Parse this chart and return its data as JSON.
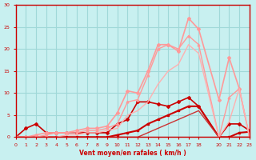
{
  "xlabel": "Vent moyen/en rafales ( km/h )",
  "bg_color": "#c8f0f0",
  "grid_color": "#a0d8d8",
  "axis_color": "#cc0000",
  "text_color": "#cc0000",
  "xlim": [
    0,
    23
  ],
  "ylim": [
    0,
    30
  ],
  "yticks": [
    0,
    5,
    10,
    15,
    20,
    25,
    30
  ],
  "xticks": [
    0,
    1,
    2,
    3,
    4,
    5,
    6,
    7,
    8,
    9,
    10,
    11,
    12,
    13,
    14,
    15,
    16,
    17,
    18,
    20,
    21,
    22,
    23
  ],
  "series": [
    {
      "x": [
        0,
        1,
        2,
        3,
        4,
        5,
        6,
        7,
        8,
        9,
        10,
        11,
        12,
        13,
        14,
        15,
        16,
        17,
        18,
        20,
        21,
        22,
        23
      ],
      "y": [
        0,
        2,
        3,
        1,
        1,
        1,
        1,
        1,
        1,
        1,
        3,
        4,
        8,
        8,
        7.5,
        7,
        8,
        9,
        7,
        0,
        3,
        3,
        1.5
      ],
      "color": "#cc0000",
      "lw": 1.2,
      "marker": "D",
      "ms": 2
    },
    {
      "x": [
        0,
        1,
        2,
        3,
        4,
        5,
        6,
        7,
        8,
        9,
        10,
        11,
        12,
        13,
        14,
        15,
        16,
        17,
        18,
        20,
        21,
        22,
        23
      ],
      "y": [
        0,
        0,
        0,
        0,
        0,
        0,
        0,
        0,
        0,
        0,
        0.5,
        1,
        1.5,
        3,
        4,
        5,
        6,
        7,
        7,
        0,
        0,
        1,
        1.2
      ],
      "color": "#cc0000",
      "lw": 1.5,
      "marker": "s",
      "ms": 2
    },
    {
      "x": [
        0,
        1,
        2,
        3,
        4,
        5,
        6,
        7,
        8,
        9,
        10,
        11,
        12,
        13,
        14,
        15,
        16,
        17,
        18,
        20,
        21,
        22,
        23
      ],
      "y": [
        0,
        0,
        0,
        0,
        0,
        0,
        0,
        0,
        0,
        0,
        0,
        0,
        0,
        1,
        2,
        3,
        4,
        5,
        6,
        0,
        0,
        0,
        0
      ],
      "color": "#cc3333",
      "lw": 1.0,
      "marker": null,
      "ms": 0
    },
    {
      "x": [
        0,
        1,
        2,
        3,
        4,
        5,
        6,
        7,
        8,
        9,
        10,
        11,
        12,
        13,
        14,
        15,
        16,
        17,
        18,
        20,
        21,
        22,
        23
      ],
      "y": [
        0,
        0,
        0.5,
        1,
        1,
        1,
        1.5,
        2,
        2,
        2.5,
        5.5,
        10.5,
        10,
        15,
        21,
        21,
        19.5,
        27,
        24.5,
        8.5,
        18,
        11,
        0
      ],
      "color": "#ff9999",
      "lw": 1.2,
      "marker": "D",
      "ms": 2
    },
    {
      "x": [
        0,
        1,
        2,
        3,
        4,
        5,
        6,
        7,
        8,
        9,
        10,
        11,
        12,
        13,
        14,
        15,
        16,
        17,
        18,
        20,
        21,
        22,
        23
      ],
      "y": [
        0,
        0,
        0,
        0.5,
        1,
        1,
        1,
        1.5,
        1.5,
        2,
        3,
        8,
        8.5,
        14,
        20,
        21,
        20,
        23,
        21,
        0,
        9,
        11,
        0
      ],
      "color": "#ff9999",
      "lw": 1.0,
      "marker": "^",
      "ms": 2
    },
    {
      "x": [
        0,
        1,
        2,
        3,
        4,
        5,
        6,
        7,
        8,
        9,
        10,
        11,
        12,
        13,
        14,
        15,
        16,
        17,
        18,
        20,
        21,
        22,
        23
      ],
      "y": [
        0,
        0,
        0,
        0,
        0,
        0.5,
        0.5,
        1,
        1,
        1.5,
        2,
        5,
        6,
        8,
        12,
        15,
        16.5,
        21,
        19,
        0,
        3.5,
        11,
        0
      ],
      "color": "#ffb0b0",
      "lw": 1.0,
      "marker": null,
      "ms": 0
    }
  ]
}
